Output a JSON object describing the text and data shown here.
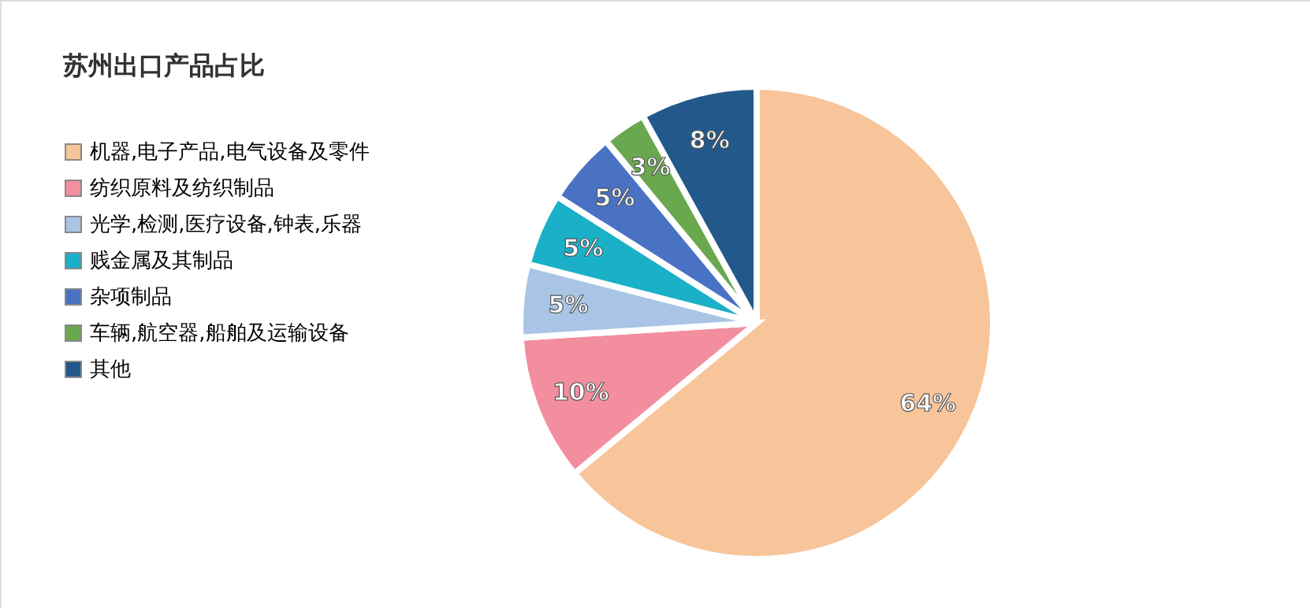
{
  "chart_data": {
    "type": "pie",
    "title": "苏州出口产品占比",
    "categories": [
      "机器,电子产品,电气设备及零件",
      "纺织原料及纺织制品",
      "光学,检测,医疗设备,钟表,乐器",
      "贱金属及其制品",
      "杂项制品",
      "车辆,航空器,船舶及运输设备",
      "其他"
    ],
    "values": [
      64,
      10,
      5,
      5,
      5,
      3,
      8
    ],
    "colors": [
      "#f8c49a",
      "#f28e9e",
      "#a9c4e4",
      "#1ab0c8",
      "#4a72c4",
      "#6aa84f",
      "#22588a"
    ],
    "value_labels": [
      "64%",
      "10%",
      "5%",
      "5%",
      "5%",
      "3%",
      "8%"
    ],
    "legend": "left"
  }
}
